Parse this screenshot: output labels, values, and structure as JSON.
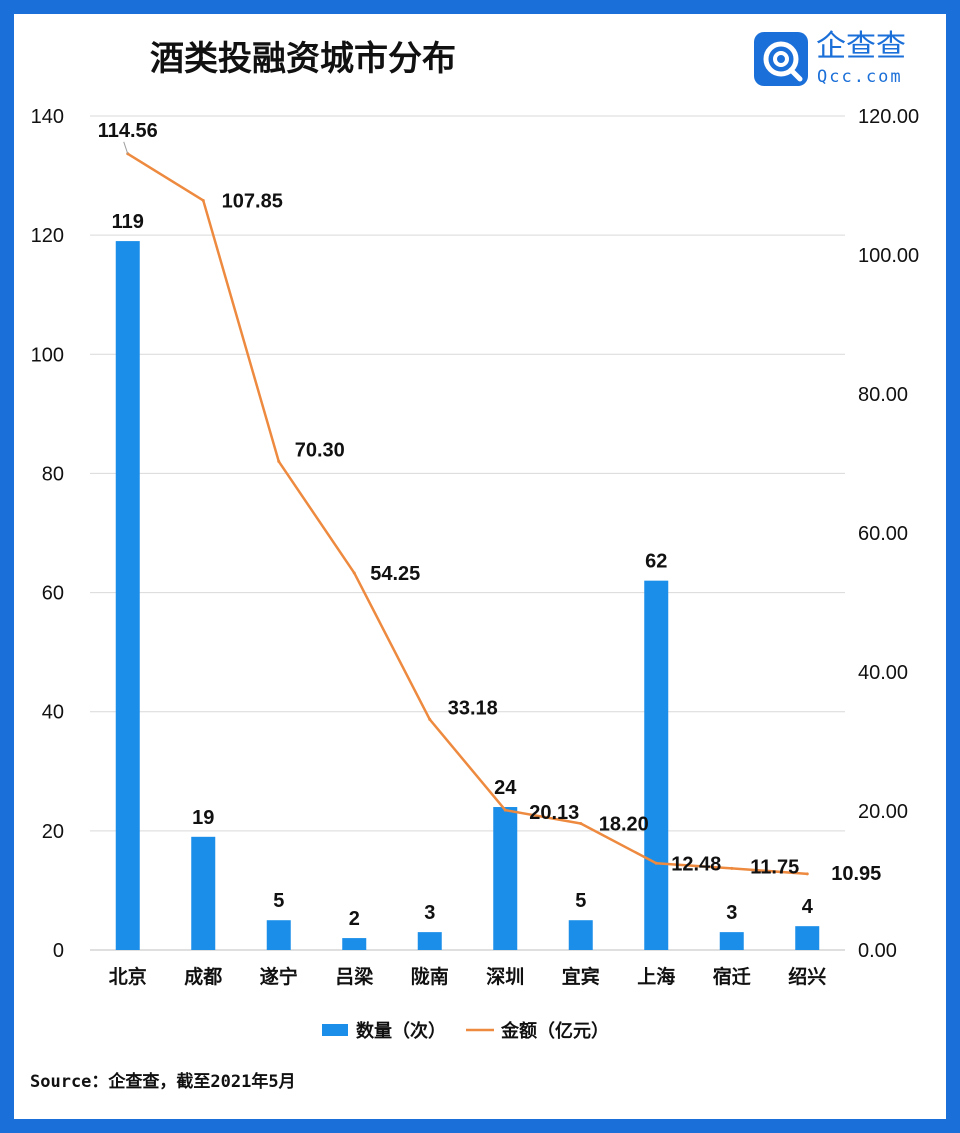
{
  "brand": {
    "name_cn": "企查查",
    "name_en": "Qcc.com",
    "icon": "qcc-logo-icon",
    "color": "#1b6fd8"
  },
  "source": "Source：企查查，截至2021年5月",
  "colors": {
    "bar": "#1a8ee8",
    "line": "#ed8a3f",
    "frame": "#1b6fd8",
    "grid": "#d9d9d9"
  },
  "chart_data": {
    "type": "bar",
    "title": "酒类投融资城市分布",
    "categories": [
      "北京",
      "成都",
      "遂宁",
      "吕梁",
      "陇南",
      "深圳",
      "宜宾",
      "上海",
      "宿迁",
      "绍兴"
    ],
    "series": [
      {
        "name": "数量（次）",
        "type": "bar",
        "axis": "left",
        "values": [
          119,
          19,
          5,
          2,
          3,
          24,
          5,
          62,
          3,
          4
        ],
        "labels": [
          "119",
          "19",
          "5",
          "2",
          "3",
          "24",
          "5",
          "62",
          "3",
          "4"
        ]
      },
      {
        "name": "金额（亿元）",
        "type": "line",
        "axis": "right",
        "values": [
          114.56,
          107.85,
          70.3,
          54.25,
          33.18,
          20.13,
          18.2,
          12.48,
          11.75,
          10.95
        ],
        "labels": [
          "114.56",
          "107.85",
          "70.30",
          "54.25",
          "33.18",
          "20.13",
          "18.20",
          "12.48",
          "11.75",
          "10.95"
        ]
      }
    ],
    "y_left": {
      "min": 0,
      "max": 140,
      "ticks": [
        "0",
        "20",
        "40",
        "60",
        "80",
        "100",
        "120",
        "140"
      ]
    },
    "y_right": {
      "min": 0,
      "max": 120,
      "ticks": [
        "0.00",
        "20.00",
        "40.00",
        "60.00",
        "80.00",
        "100.00",
        "120.00"
      ]
    },
    "grid": true,
    "legend_position": "bottom"
  }
}
